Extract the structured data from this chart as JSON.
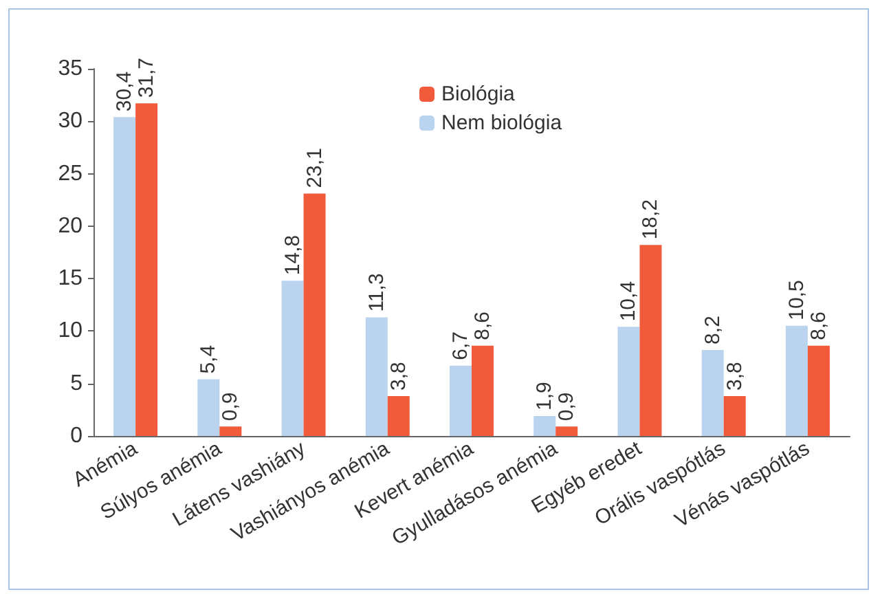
{
  "chart_data": {
    "type": "bar",
    "categories": [
      "Anémia",
      "Súlyos anémia",
      "Látens vashiány",
      "Vashiányos anémia",
      "Kevert anémia",
      "Gyulladásos anémia",
      "Egyéb eredet",
      "Orális vaspótlás",
      "Vénás vaspótlás"
    ],
    "series": [
      {
        "name": "Nem biológia",
        "color": "#bad3ee",
        "values": [
          30.4,
          5.4,
          14.8,
          11.3,
          6.7,
          1.9,
          10.4,
          8.2,
          10.5
        ],
        "value_labels": [
          "30,4",
          "5,4",
          "14,8",
          "11,3",
          "6,7",
          "1,9",
          "10,4",
          "8,2",
          "10,5"
        ]
      },
      {
        "name": "Biológia",
        "color": "#f15a3b",
        "values": [
          31.7,
          0.9,
          23.1,
          3.8,
          8.6,
          0.9,
          18.2,
          3.8,
          8.6
        ],
        "value_labels": [
          "31,7",
          "0,9",
          "23,1",
          "3,8",
          "8,6",
          "0,9",
          "18,2",
          "3,8",
          "8,6"
        ]
      }
    ],
    "ylim": [
      0,
      35
    ],
    "yticks": [
      0,
      5,
      10,
      15,
      20,
      25,
      30,
      35
    ],
    "grid": false,
    "legend": "top"
  }
}
